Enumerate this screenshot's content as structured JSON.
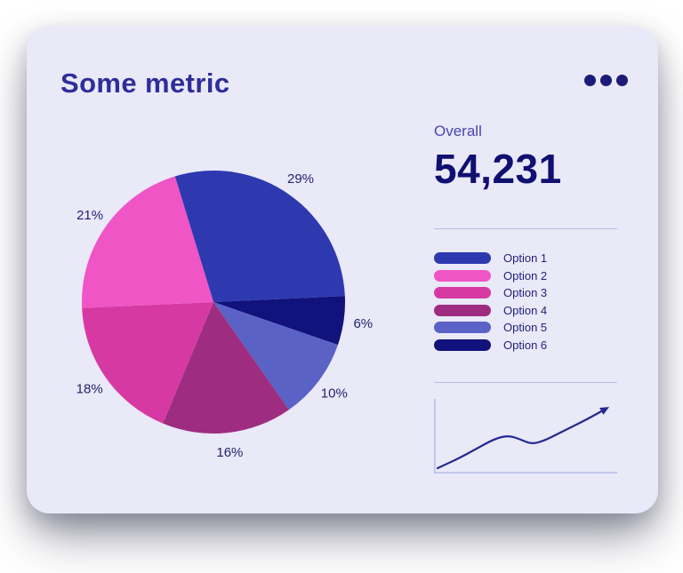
{
  "card": {
    "title": "Some metric",
    "menu_icon": "ellipsis-icon",
    "background_color": "#e9e9f8",
    "title_color": "#2e2e99"
  },
  "overall": {
    "label": "Overall",
    "value": "54,231"
  },
  "chart_data": [
    {
      "type": "pie",
      "title": "Some metric",
      "unit": "%",
      "series": [
        {
          "name": "Option 1",
          "value": 29,
          "color": "#2e39b0"
        },
        {
          "name": "Option 2",
          "value": 21,
          "color": "#ef55c5"
        },
        {
          "name": "Option 3",
          "value": 18,
          "color": "#d63aa2"
        },
        {
          "name": "Option 4",
          "value": 16,
          "color": "#9e2c81"
        },
        {
          "name": "Option 5",
          "value": 10,
          "color": "#5a62c6"
        },
        {
          "name": "Option 6",
          "value": 6,
          "color": "#12127c"
        }
      ],
      "slice_labels": [
        "29%",
        "21%",
        "18%",
        "16%",
        "10%",
        "6%"
      ],
      "draw_order_clockwise_from_top": [
        "Option 1",
        "Option 6",
        "Option 5",
        "Option 4",
        "Option 3",
        "Option 2"
      ],
      "start_angle_deg": -107,
      "legend_position": "right"
    },
    {
      "type": "line",
      "name": "trend-sparkline",
      "points": [
        [
          4,
          78
        ],
        [
          26,
          68
        ],
        [
          48,
          56
        ],
        [
          68,
          45
        ],
        [
          84,
          41
        ],
        [
          98,
          46
        ],
        [
          110,
          51
        ],
        [
          124,
          47
        ],
        [
          140,
          39
        ],
        [
          156,
          31
        ],
        [
          172,
          23
        ],
        [
          190,
          13
        ]
      ],
      "y_is_screen_down": true,
      "arrow_end": true,
      "axes": "left-and-bottom",
      "axis_color": "#b9bee9",
      "line_color": "#222a8e"
    }
  ]
}
